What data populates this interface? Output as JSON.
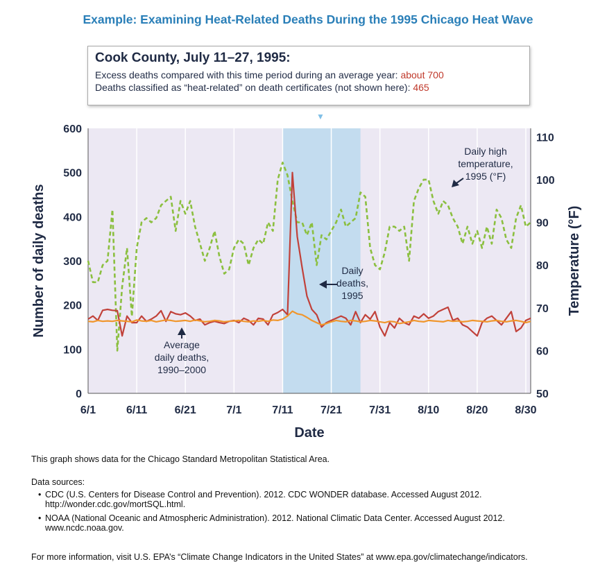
{
  "title": "Example: Examining Heat-Related Deaths During the 1995 Chicago Heat Wave",
  "callout": {
    "heading": "Cook County, July 11–27, 1995:",
    "line1_text": "Excess deaths compared with this time period during an average year: ",
    "line1_value": "about 700",
    "line2_text": "Deaths classified as “heat-related” on death certificates (not shown here): ",
    "line2_value": "465"
  },
  "chart_data": {
    "type": "line",
    "xlabel": "Date",
    "ylabel": "Number of daily deaths",
    "y2label": "Temperature (°F)",
    "x_tick_labels": [
      "6/1",
      "6/11",
      "6/21",
      "7/1",
      "7/11",
      "7/21",
      "7/31",
      "8/10",
      "8/20",
      "8/30"
    ],
    "x_range_days": [
      1,
      92
    ],
    "ylim": [
      0,
      600
    ],
    "y_ticks": [
      0,
      100,
      200,
      300,
      400,
      500,
      600
    ],
    "y2lim": [
      50,
      112
    ],
    "y2_ticks": [
      50,
      60,
      70,
      80,
      90,
      100,
      110
    ],
    "grid": "vertical",
    "highlight_range_days": [
      41,
      57
    ],
    "series": [
      {
        "name": "Daily high temperature, 1995 (°F)",
        "axis": "right",
        "color": "#8bbf3f",
        "style": "dashed",
        "values": [
          81,
          76,
          76,
          80,
          81,
          93,
          60,
          75,
          84,
          68,
          84,
          90,
          91,
          90,
          91,
          94,
          95,
          96,
          88,
          95,
          92,
          95,
          89,
          85,
          81,
          84,
          88,
          82,
          78,
          79,
          84,
          86,
          85,
          80,
          84,
          86,
          85,
          90,
          88,
          100,
          104,
          101,
          95,
          90,
          90,
          87,
          90,
          80,
          87,
          86,
          88,
          90,
          93,
          89,
          90,
          91,
          97,
          96,
          84,
          80,
          79,
          83,
          89,
          89,
          88,
          89,
          81,
          95,
          98,
          100,
          100,
          95,
          92,
          95,
          94,
          91,
          89,
          85,
          89,
          85,
          88,
          84,
          89,
          85,
          93,
          91,
          86,
          84,
          91,
          94,
          89,
          90
        ]
      },
      {
        "name": "Daily deaths, 1995",
        "axis": "left",
        "color": "#c1413a",
        "style": "solid",
        "values": [
          168,
          175,
          165,
          188,
          190,
          188,
          187,
          130,
          175,
          160,
          160,
          175,
          163,
          168,
          175,
          187,
          163,
          185,
          180,
          178,
          182,
          175,
          165,
          168,
          155,
          160,
          163,
          160,
          158,
          163,
          165,
          160,
          170,
          165,
          155,
          170,
          168,
          155,
          178,
          183,
          190,
          178,
          500,
          355,
          285,
          220,
          190,
          178,
          150,
          160,
          165,
          170,
          175,
          170,
          155,
          185,
          160,
          178,
          168,
          185,
          150,
          130,
          160,
          148,
          170,
          160,
          155,
          175,
          170,
          180,
          170,
          175,
          185,
          190,
          195,
          165,
          170,
          155,
          150,
          140,
          130,
          160,
          170,
          175,
          165,
          155,
          170,
          185,
          140,
          148,
          165,
          170
        ]
      },
      {
        "name": "Average daily deaths, 1990–2000",
        "axis": "left",
        "color": "#f0962c",
        "style": "solid",
        "values": [
          163,
          162,
          165,
          163,
          164,
          163,
          165,
          164,
          163,
          162,
          166,
          164,
          163,
          165,
          162,
          164,
          166,
          165,
          163,
          164,
          165,
          163,
          166,
          164,
          162,
          163,
          165,
          164,
          162,
          163,
          164,
          165,
          163,
          162,
          164,
          163,
          165,
          163,
          166,
          165,
          168,
          175,
          186,
          180,
          178,
          172,
          165,
          160,
          155,
          158,
          162,
          165,
          163,
          162,
          165,
          164,
          162,
          163,
          165,
          164,
          162,
          160,
          163,
          162,
          158,
          160,
          162,
          165,
          163,
          162,
          165,
          164,
          163,
          162,
          165,
          163,
          164,
          162,
          163,
          165,
          164,
          163,
          162,
          164,
          165,
          163,
          162,
          164,
          165,
          163,
          160,
          163
        ]
      }
    ],
    "annotations": {
      "temp": [
        "Daily high",
        "temperature,",
        "1995 (°F)"
      ],
      "daily": [
        "Daily",
        "deaths,",
        "1995"
      ],
      "avg": [
        "Average",
        "daily deaths,",
        "1990–2000"
      ]
    }
  },
  "footer": {
    "note": "This graph shows data for the Chicago Standard Metropolitan Statistical Area.",
    "sources_heading": "Data sources:",
    "source1_a": "CDC (U.S. Centers for Disease Control and Prevention). 2012. CDC WONDER database. Accessed August 2012.",
    "source1_b": "http://wonder.cdc.gov/mortSQL.html.",
    "source2_a": "NOAA (National Oceanic and Atmospheric Administration). 2012. National Climatic Data Center. Accessed August 2012.",
    "source2_b": "www.ncdc.noaa.gov.",
    "more_info": "For more information, visit U.S. EPA’s “Climate Change Indicators in the United States” at www.epa.gov/climatechange/indicators."
  }
}
